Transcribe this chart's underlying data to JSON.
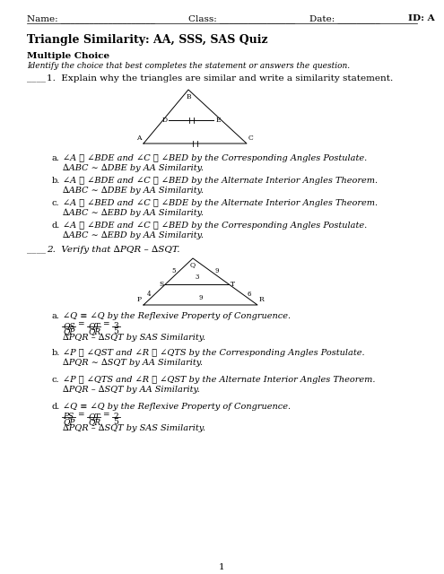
{
  "title": "Triangle Similarity: AA, SSS, SAS Quiz",
  "header_name": "Name: ___________________",
  "header_class": "Class: _______________",
  "header_date": "Date: _________",
  "header_id": "ID: A",
  "section": "Multiple Choice",
  "section_italic": "Identify the choice that best completes the statement or answers the question.",
  "q1_text": "1.  Explain why the triangles are similar and write a similarity statement.",
  "q2_text": "2.  Verify that ∆PQR – ∆SQT.",
  "ans1a1": "∠A ≅ ∠BDE and ∠C ≅ ∠BED by the Corresponding Angles Postulate.",
  "ans1a2": "∆ABC ∼ ∆DBE by AA Similarity.",
  "ans1b1": "∠A ≅ ∠BDE and ∠C ≅ ∠BED by the Alternate Interior Angles Theorem.",
  "ans1b2": "∆ABC ∼ ∆DBE by AA Similarity.",
  "ans1c1": "∠A ≅ ∠BED and ∠C ≅ ∠BDE by the Alternate Interior Angles Theorem.",
  "ans1c2": "∆ABC ∼ ∆EBD by AA Similarity.",
  "ans1d1": "∠A ≅ ∠BDE and ∠C ≅ ∠BED by the Corresponding Angles Postulate.",
  "ans1d2": "∆ABC ∼ ∆EBD by AA Similarity.",
  "ans2a1": "∠Q ≡ ∠Q by the Reflexive Property of Congruence.",
  "ans2a3": "∆PQR – ∆SQT by SAS Similarity.",
  "ans2b1": "∠P ≅ ∠QST and ∠R ≅ ∠QTS by the Corresponding Angles Postulate.",
  "ans2b2": "∆PQR ∼ ∆SQT by AA Similarity.",
  "ans2c1": "∠P ≅ ∠QTS and ∠R ≅ ∠QST by the Alternate Interior Angles Theorem.",
  "ans2c2": "∆PQR – ∆SQT by AA Similarity.",
  "ans2d1": "∠Q ≡ ∠Q by the Reflexive Property of Congruence.",
  "ans2d3": "∆PQR – ∆SQT by SAS Similarity.",
  "page_num": "1"
}
